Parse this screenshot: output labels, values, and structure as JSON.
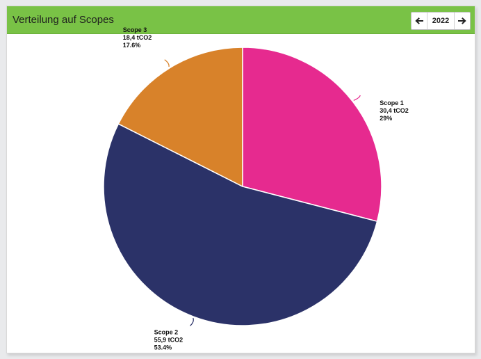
{
  "widget": {
    "title": "Verteilung auf Scopes",
    "year": "2022",
    "colors": {
      "header_bg": "#79c246"
    }
  },
  "icons": {
    "prev": "arrow-left-icon",
    "next": "arrow-right-icon"
  },
  "chart_data": {
    "type": "pie",
    "title": "",
    "slices": [
      {
        "name": "Scope 1",
        "value": 30.4,
        "value_text": "30,4 tCO2",
        "percent": 29.0,
        "percent_text": "29%",
        "color": "#e62a8f"
      },
      {
        "name": "Scope 2",
        "value": 55.9,
        "value_text": "55,9 tCO2",
        "percent": 53.4,
        "percent_text": "53.4%",
        "color": "#2b3268"
      },
      {
        "name": "Scope 3",
        "value": 18.4,
        "value_text": "18,4 tCO2",
        "percent": 17.6,
        "percent_text": "17.6%",
        "color": "#d8822a"
      }
    ]
  }
}
